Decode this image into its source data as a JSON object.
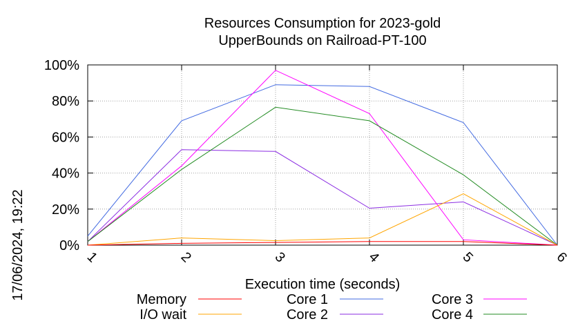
{
  "chart_data": {
    "type": "line",
    "title": "Resources Consumption for 2023-gold",
    "subtitle": "UpperBounds on Railroad-PT-100",
    "xlabel": "Execution time (seconds)",
    "ylabel": "",
    "side_label": "17/06/2024, 19:22",
    "x": [
      1,
      2,
      3,
      4,
      5,
      6
    ],
    "xlim": [
      1,
      6
    ],
    "ylim": [
      0,
      100
    ],
    "x_ticks": [
      "1",
      "2",
      "3",
      "4",
      "5",
      "6"
    ],
    "y_ticks": [
      "0%",
      "20%",
      "40%",
      "60%",
      "80%",
      "100%"
    ],
    "grid": true,
    "legend_position": "bottom",
    "series": [
      {
        "name": "Memory",
        "color": "#ff0000",
        "values": [
          0,
          1,
          1.5,
          2,
          2,
          0
        ]
      },
      {
        "name": "I/O wait",
        "color": "#ffa500",
        "values": [
          0,
          4,
          2.5,
          4,
          28.5,
          0
        ]
      },
      {
        "name": "Core 1",
        "color": "#4169e1",
        "values": [
          5,
          69,
          89,
          88,
          68,
          0
        ]
      },
      {
        "name": "Core 2",
        "color": "#8a2be2",
        "values": [
          2,
          53,
          52,
          20.5,
          24,
          0
        ]
      },
      {
        "name": "Core 3",
        "color": "#ff00ff",
        "values": [
          2,
          44,
          97,
          73,
          3,
          0
        ]
      },
      {
        "name": "Core 4",
        "color": "#228b22",
        "values": [
          2,
          42,
          76.5,
          69,
          39,
          0
        ]
      }
    ]
  }
}
